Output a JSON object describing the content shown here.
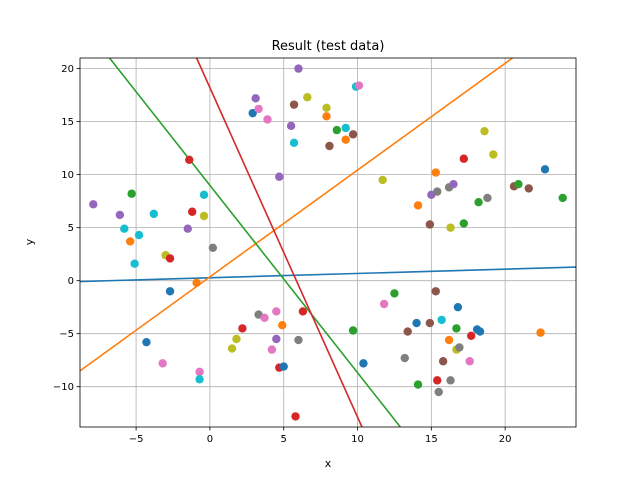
{
  "chart_data": {
    "type": "scatter",
    "title": "Result (test data)",
    "xlabel": "x",
    "ylabel": "y",
    "xlim": [
      -8.8,
      24.8
    ],
    "ylim": [
      -13.8,
      21.0
    ],
    "xticks": [
      -5,
      0,
      5,
      10,
      15,
      20
    ],
    "yticks": [
      -10,
      -5,
      0,
      5,
      10,
      15,
      20
    ],
    "grid": true,
    "points": [
      {
        "x": -7.9,
        "y": 7.2,
        "color": "#9467bd"
      },
      {
        "x": -6.1,
        "y": 6.2,
        "color": "#9467bd"
      },
      {
        "x": -5.8,
        "y": 4.9,
        "color": "#17becf"
      },
      {
        "x": -5.4,
        "y": 3.7,
        "color": "#ff7f0e"
      },
      {
        "x": -5.3,
        "y": 8.2,
        "color": "#2ca02c"
      },
      {
        "x": -5.1,
        "y": 1.6,
        "color": "#17becf"
      },
      {
        "x": -4.8,
        "y": 4.3,
        "color": "#17becf"
      },
      {
        "x": -4.3,
        "y": -5.8,
        "color": "#1f77b4"
      },
      {
        "x": -3.8,
        "y": 6.3,
        "color": "#17becf"
      },
      {
        "x": -3.2,
        "y": -7.8,
        "color": "#e377c2"
      },
      {
        "x": -3.0,
        "y": 2.4,
        "color": "#bcbd22"
      },
      {
        "x": -2.7,
        "y": 2.1,
        "color": "#d62728"
      },
      {
        "x": -2.7,
        "y": -1.0,
        "color": "#1f77b4"
      },
      {
        "x": -1.5,
        "y": 4.9,
        "color": "#9467bd"
      },
      {
        "x": -1.4,
        "y": 11.4,
        "color": "#d62728"
      },
      {
        "x": -1.2,
        "y": 6.5,
        "color": "#d62728"
      },
      {
        "x": -0.9,
        "y": -0.2,
        "color": "#ff7f0e"
      },
      {
        "x": -0.7,
        "y": -8.6,
        "color": "#e377c2"
      },
      {
        "x": -0.7,
        "y": -9.3,
        "color": "#17becf"
      },
      {
        "x": -0.4,
        "y": 8.1,
        "color": "#17becf"
      },
      {
        "x": -0.4,
        "y": 6.1,
        "color": "#bcbd22"
      },
      {
        "x": 0.2,
        "y": 3.1,
        "color": "#7f7f7f"
      },
      {
        "x": 1.5,
        "y": -6.4,
        "color": "#bcbd22"
      },
      {
        "x": 1.8,
        "y": -5.5,
        "color": "#bcbd22"
      },
      {
        "x": 2.2,
        "y": -4.5,
        "color": "#d62728"
      },
      {
        "x": 2.9,
        "y": 15.8,
        "color": "#1f77b4"
      },
      {
        "x": 3.1,
        "y": 17.2,
        "color": "#9467bd"
      },
      {
        "x": 3.3,
        "y": 16.2,
        "color": "#e377c2"
      },
      {
        "x": 3.3,
        "y": -3.2,
        "color": "#7f7f7f"
      },
      {
        "x": 3.7,
        "y": -3.5,
        "color": "#e377c2"
      },
      {
        "x": 3.9,
        "y": 15.2,
        "color": "#e377c2"
      },
      {
        "x": 4.2,
        "y": -6.5,
        "color": "#e377c2"
      },
      {
        "x": 4.5,
        "y": -5.5,
        "color": "#9467bd"
      },
      {
        "x": 4.5,
        "y": -2.9,
        "color": "#e377c2"
      },
      {
        "x": 4.7,
        "y": 9.8,
        "color": "#9467bd"
      },
      {
        "x": 4.7,
        "y": -8.2,
        "color": "#d62728"
      },
      {
        "x": 4.9,
        "y": -4.2,
        "color": "#ff7f0e"
      },
      {
        "x": 5.0,
        "y": -8.1,
        "color": "#1f77b4"
      },
      {
        "x": 5.5,
        "y": 14.6,
        "color": "#9467bd"
      },
      {
        "x": 5.7,
        "y": 16.6,
        "color": "#8c564b"
      },
      {
        "x": 5.7,
        "y": 13.0,
        "color": "#17becf"
      },
      {
        "x": 5.8,
        "y": -12.8,
        "color": "#d62728"
      },
      {
        "x": 6.0,
        "y": 20.0,
        "color": "#9467bd"
      },
      {
        "x": 6.0,
        "y": -5.6,
        "color": "#7f7f7f"
      },
      {
        "x": 6.3,
        "y": -2.9,
        "color": "#d62728"
      },
      {
        "x": 6.6,
        "y": 17.3,
        "color": "#bcbd22"
      },
      {
        "x": 7.9,
        "y": 16.3,
        "color": "#bcbd22"
      },
      {
        "x": 7.9,
        "y": 15.5,
        "color": "#ff7f0e"
      },
      {
        "x": 8.1,
        "y": 12.7,
        "color": "#8c564b"
      },
      {
        "x": 8.6,
        "y": 14.2,
        "color": "#2ca02c"
      },
      {
        "x": 9.2,
        "y": 14.4,
        "color": "#17becf"
      },
      {
        "x": 9.2,
        "y": 13.3,
        "color": "#ff7f0e"
      },
      {
        "x": 9.7,
        "y": 13.8,
        "color": "#8c564b"
      },
      {
        "x": 9.7,
        "y": -4.7,
        "color": "#2ca02c"
      },
      {
        "x": 9.9,
        "y": 18.3,
        "color": "#17becf"
      },
      {
        "x": 10.1,
        "y": 18.4,
        "color": "#e377c2"
      },
      {
        "x": 10.4,
        "y": -7.8,
        "color": "#1f77b4"
      },
      {
        "x": 11.7,
        "y": 9.5,
        "color": "#bcbd22"
      },
      {
        "x": 11.8,
        "y": -2.2,
        "color": "#e377c2"
      },
      {
        "x": 12.5,
        "y": -1.2,
        "color": "#2ca02c"
      },
      {
        "x": 13.2,
        "y": -7.3,
        "color": "#7f7f7f"
      },
      {
        "x": 13.4,
        "y": -4.8,
        "color": "#8c564b"
      },
      {
        "x": 14.0,
        "y": -4.0,
        "color": "#1f77b4"
      },
      {
        "x": 14.1,
        "y": 7.1,
        "color": "#ff7f0e"
      },
      {
        "x": 14.1,
        "y": -9.8,
        "color": "#2ca02c"
      },
      {
        "x": 14.9,
        "y": -4.0,
        "color": "#8c564b"
      },
      {
        "x": 14.9,
        "y": 5.3,
        "color": "#8c564b"
      },
      {
        "x": 15.0,
        "y": 8.1,
        "color": "#9467bd"
      },
      {
        "x": 15.3,
        "y": -1.0,
        "color": "#8c564b"
      },
      {
        "x": 15.3,
        "y": 10.2,
        "color": "#ff7f0e"
      },
      {
        "x": 15.4,
        "y": 8.4,
        "color": "#7f7f7f"
      },
      {
        "x": 15.4,
        "y": -9.4,
        "color": "#d62728"
      },
      {
        "x": 15.5,
        "y": -10.5,
        "color": "#7f7f7f"
      },
      {
        "x": 15.7,
        "y": -3.7,
        "color": "#17becf"
      },
      {
        "x": 15.8,
        "y": -7.6,
        "color": "#8c564b"
      },
      {
        "x": 16.2,
        "y": 8.8,
        "color": "#7f7f7f"
      },
      {
        "x": 16.2,
        "y": -5.6,
        "color": "#ff7f0e"
      },
      {
        "x": 16.3,
        "y": 5.0,
        "color": "#bcbd22"
      },
      {
        "x": 16.3,
        "y": -9.4,
        "color": "#7f7f7f"
      },
      {
        "x": 16.5,
        "y": 9.1,
        "color": "#9467bd"
      },
      {
        "x": 16.7,
        "y": -4.5,
        "color": "#2ca02c"
      },
      {
        "x": 16.7,
        "y": -6.5,
        "color": "#bcbd22"
      },
      {
        "x": 16.8,
        "y": -2.5,
        "color": "#1f77b4"
      },
      {
        "x": 16.9,
        "y": -6.3,
        "color": "#7f7f7f"
      },
      {
        "x": 17.2,
        "y": 11.5,
        "color": "#d62728"
      },
      {
        "x": 17.2,
        "y": 5.4,
        "color": "#2ca02c"
      },
      {
        "x": 17.6,
        "y": -7.6,
        "color": "#e377c2"
      },
      {
        "x": 17.7,
        "y": -5.2,
        "color": "#d62728"
      },
      {
        "x": 18.1,
        "y": -4.6,
        "color": "#1f77b4"
      },
      {
        "x": 18.2,
        "y": 7.4,
        "color": "#2ca02c"
      },
      {
        "x": 18.3,
        "y": -4.8,
        "color": "#1f77b4"
      },
      {
        "x": 18.6,
        "y": 14.1,
        "color": "#bcbd22"
      },
      {
        "x": 18.8,
        "y": 7.8,
        "color": "#7f7f7f"
      },
      {
        "x": 19.2,
        "y": 11.9,
        "color": "#bcbd22"
      },
      {
        "x": 20.6,
        "y": 8.9,
        "color": "#8c564b"
      },
      {
        "x": 20.9,
        "y": 9.1,
        "color": "#2ca02c"
      },
      {
        "x": 21.6,
        "y": 8.7,
        "color": "#8c564b"
      },
      {
        "x": 22.4,
        "y": -4.9,
        "color": "#ff7f0e"
      },
      {
        "x": 22.7,
        "y": 10.5,
        "color": "#1f77b4"
      },
      {
        "x": 23.9,
        "y": 7.8,
        "color": "#2ca02c"
      }
    ],
    "lines": [
      {
        "color": "#1f77b4",
        "x": [
          -8.8,
          24.8
        ],
        "y": [
          -0.08,
          1.28
        ]
      },
      {
        "color": "#ff7f0e",
        "x": [
          -8.8,
          20.5
        ],
        "y": [
          -8.5,
          21.0
        ]
      },
      {
        "color": "#2ca02c",
        "x": [
          -6.8,
          12.9
        ],
        "y": [
          21.0,
          -13.8
        ]
      },
      {
        "color": "#d62728",
        "x": [
          -0.9,
          10.3
        ],
        "y": [
          21.0,
          -13.8
        ]
      }
    ]
  }
}
